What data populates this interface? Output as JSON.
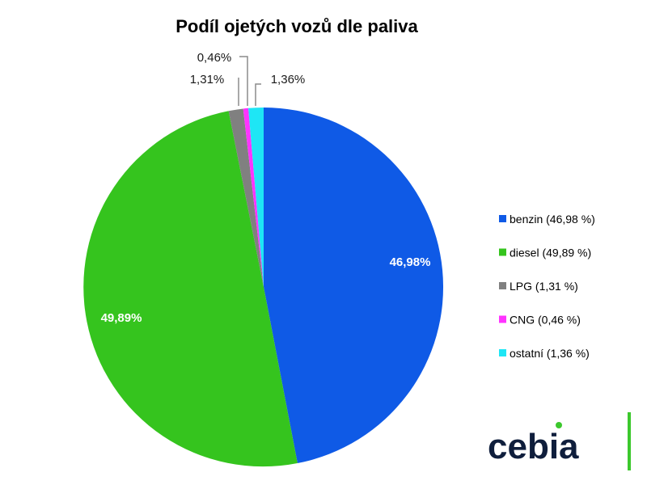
{
  "chart_data": {
    "type": "pie",
    "title": "Podíl ojetých vozů dle paliva",
    "slices": [
      {
        "label": "benzin",
        "value": 46.98,
        "display": "46,98%",
        "legend": "benzin (46,98 %)",
        "color": "#0f5ae6",
        "label_pos": "inside"
      },
      {
        "label": "diesel",
        "value": 49.89,
        "display": "49,89%",
        "legend": "diesel (49,89 %)",
        "color": "#35c41e",
        "label_pos": "inside"
      },
      {
        "label": "LPG",
        "value": 1.31,
        "display": "1,31%",
        "legend": "LPG (1,31 %)",
        "color": "#808080",
        "label_pos": "outside"
      },
      {
        "label": "CNG",
        "value": 0.46,
        "display": "0,46%",
        "legend": "CNG (0,46 %)",
        "color": "#ff33ff",
        "label_pos": "outside"
      },
      {
        "label": "ostatní",
        "value": 1.36,
        "display": "1,36%",
        "legend": "ostatní (1,36 %)",
        "color": "#1ee6f5",
        "label_pos": "outside"
      }
    ],
    "start_angle": "12 o'clock",
    "direction": "clockwise",
    "legend_placement": "right"
  },
  "logo": {
    "text": "cebia",
    "dot_color": "#3cc82d",
    "bar_color": "#3cc82d"
  }
}
